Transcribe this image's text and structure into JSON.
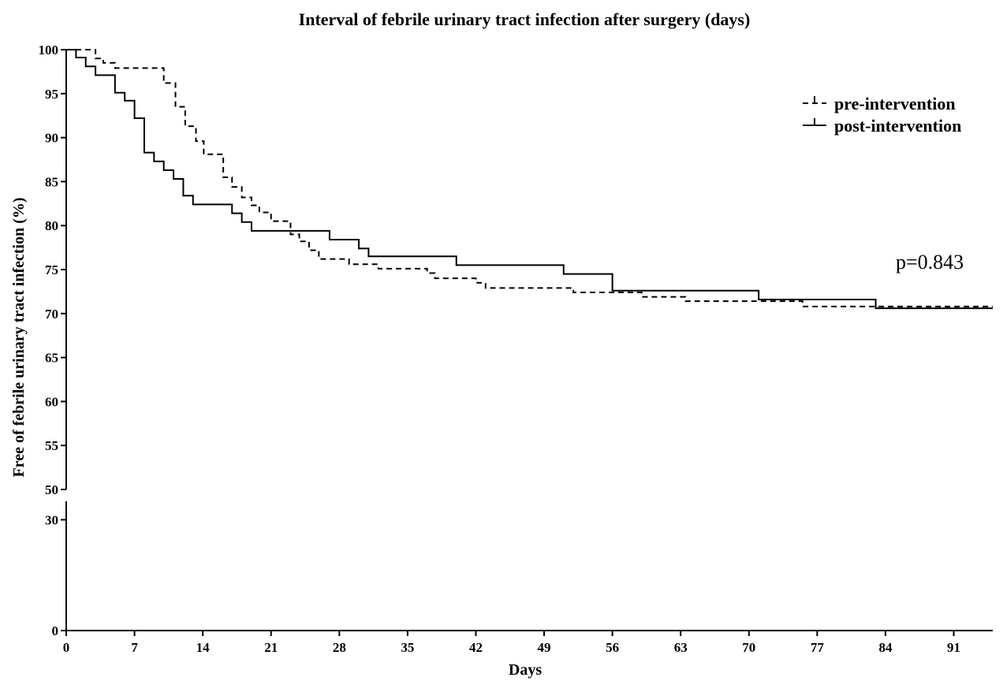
{
  "chart_data": {
    "type": "line",
    "title": "Interval of febrile urinary tract infection after surgery (days)",
    "xlabel": "Days",
    "ylabel": "Free of febrile urinary tract infection (%)",
    "xlim": [
      0,
      95
    ],
    "x_ticks": [
      0,
      7,
      14,
      21,
      28,
      35,
      42,
      49,
      56,
      63,
      70,
      77,
      84,
      91
    ],
    "y_ticks_upper": [
      50,
      55,
      60,
      65,
      70,
      75,
      80,
      85,
      90,
      95,
      100
    ],
    "y_ticks_lower": [
      0,
      30
    ],
    "y_axis_break": [
      35,
      50
    ],
    "legend_position": "top-right",
    "annotation": "p=0.843",
    "series": [
      {
        "name": "pre-intervention",
        "style": "dashed",
        "step_points": [
          [
            0,
            100
          ],
          [
            3,
            99
          ],
          [
            3.8,
            98.5
          ],
          [
            5,
            97.9
          ],
          [
            10,
            96.2
          ],
          [
            11.2,
            93.5
          ],
          [
            12.2,
            91.3
          ],
          [
            13.3,
            89.6
          ],
          [
            14.1,
            88.1
          ],
          [
            16.1,
            85.5
          ],
          [
            17,
            84.4
          ],
          [
            18,
            83.2
          ],
          [
            19,
            82.3
          ],
          [
            19.8,
            81.5
          ],
          [
            21,
            80.5
          ],
          [
            23,
            79
          ],
          [
            23.9,
            78.2
          ],
          [
            24.9,
            77.2
          ],
          [
            25.9,
            76.2
          ],
          [
            29,
            75.6
          ],
          [
            32,
            75.1
          ],
          [
            37,
            74.6
          ],
          [
            37.8,
            74
          ],
          [
            42,
            73.5
          ],
          [
            43,
            72.9
          ],
          [
            52,
            72.4
          ],
          [
            59,
            71.9
          ],
          [
            63.5,
            71.4
          ],
          [
            75.5,
            70.8
          ],
          [
            95,
            70.8
          ]
        ]
      },
      {
        "name": "post-intervention",
        "style": "solid",
        "step_points": [
          [
            0,
            100
          ],
          [
            1,
            99.1
          ],
          [
            2,
            98.1
          ],
          [
            3,
            97.1
          ],
          [
            5,
            95.1
          ],
          [
            6,
            94.2
          ],
          [
            7,
            92.2
          ],
          [
            8,
            88.3
          ],
          [
            9,
            87.3
          ],
          [
            10,
            86.3
          ],
          [
            11,
            85.3
          ],
          [
            12,
            83.4
          ],
          [
            13,
            82.4
          ],
          [
            17,
            81.4
          ],
          [
            18,
            80.4
          ],
          [
            19,
            79.4
          ],
          [
            27,
            78.4
          ],
          [
            30,
            77.4
          ],
          [
            31,
            76.5
          ],
          [
            40,
            75.5
          ],
          [
            51,
            74.5
          ],
          [
            56,
            72.6
          ],
          [
            71,
            71.6
          ],
          [
            83,
            70.6
          ],
          [
            95,
            70.6
          ]
        ]
      }
    ]
  }
}
